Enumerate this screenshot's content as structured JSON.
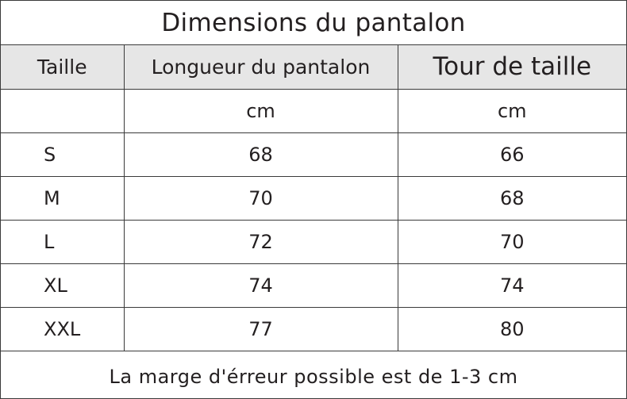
{
  "title": "Dimensions du pantalon",
  "table": {
    "headers": [
      "Taille",
      "Longueur du pantalon",
      "Tour de taille"
    ],
    "unit_row": [
      "",
      "cm",
      "cm"
    ],
    "rows": [
      [
        "S",
        "68",
        "66"
      ],
      [
        "M",
        "70",
        "68"
      ],
      [
        "L",
        "72",
        "70"
      ],
      [
        "XL",
        "74",
        "74"
      ],
      [
        "XXL",
        "77",
        "80"
      ]
    ]
  },
  "footer_note": "La marge d'érreur possible est de 1-3 cm",
  "colors": {
    "header_background": "#e6e6e6",
    "border": "#3a3a3a",
    "text": "#231f20"
  }
}
